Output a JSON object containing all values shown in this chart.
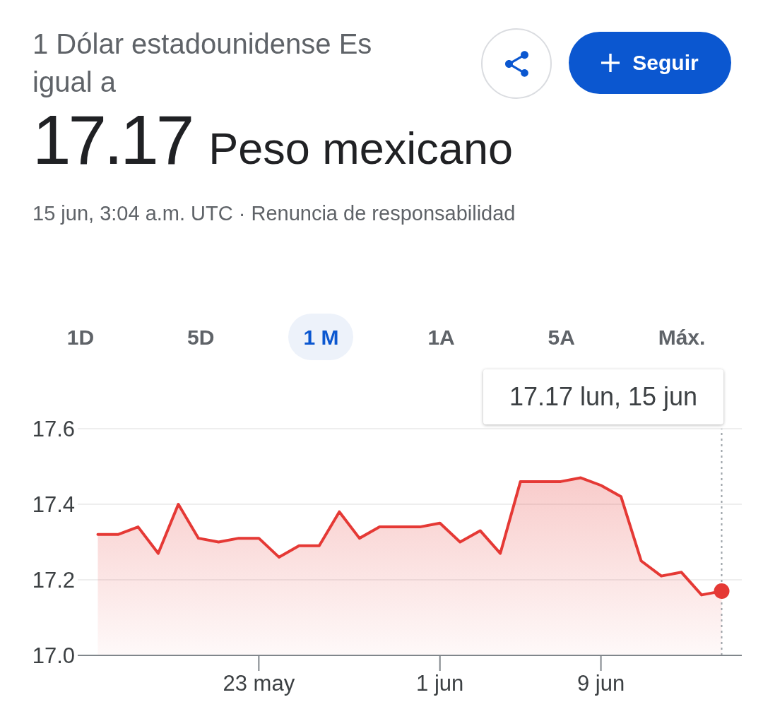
{
  "chart_data": {
    "type": "area",
    "title": "1 Dólar estadounidense Es igual a",
    "subtitle": "15 jun, 3:04 a.m. UTC · Renuncia de responsabilidad",
    "annotations": [
      "17.17",
      "Peso mexicano",
      "Seguir",
      "1D",
      "5D",
      "1 M",
      "1A",
      "5A",
      "Máx.",
      "17.17 lun, 15 jun"
    ],
    "x": [
      "--05-15",
      "--05-16",
      "--05-17",
      "--05-18",
      "--05-19",
      "--05-20",
      "--05-21",
      "--05-22",
      "--05-23",
      "--05-24",
      "--05-25",
      "--05-26",
      "--05-27",
      "--05-28",
      "--05-29",
      "--05-30",
      "--05-31",
      "--06-01",
      "--06-02",
      "--06-03",
      "--06-04",
      "--06-05",
      "--06-06",
      "--06-07",
      "--06-08",
      "--06-09",
      "--06-10",
      "--06-11",
      "--06-12",
      "--06-13",
      "--06-14",
      "--06-15"
    ],
    "series": [
      {
        "color": "#e53935",
        "values": [
          17.32,
          17.32,
          17.34,
          17.27,
          17.4,
          17.31,
          17.3,
          17.31,
          17.31,
          17.26,
          17.29,
          17.29,
          17.38,
          17.31,
          17.34,
          17.34,
          17.34,
          17.35,
          17.3,
          17.33,
          17.27,
          17.46,
          17.46,
          17.46,
          17.47,
          17.45,
          17.42,
          17.25,
          17.21,
          17.22,
          17.16,
          17.17
        ]
      },
      {
        "type": "scatter",
        "x": [
          "--06-15"
        ],
        "values": [
          17.17
        ],
        "color": "#e53935",
        "marker": "circle"
      }
    ],
    "xlim": [
      "--05-14",
      "--06-16"
    ],
    "xticks": [
      {
        "value": "--05-23",
        "label": "23 may"
      },
      {
        "value": "--06-01",
        "label": "1 jun"
      },
      {
        "value": "--06-09",
        "label": "9 jun"
      }
    ],
    "ylim": [
      17.0,
      17.6
    ],
    "yticks": [
      {
        "value": 17.0,
        "label": "17.0"
      },
      17.2,
      17.4,
      17.6
    ],
    "grid": "y",
    "ref_lines": [
      {
        "axis": "x",
        "value": "--06-15",
        "color": "#9aa0a6",
        "line_style": "dotted"
      }
    ]
  }
}
